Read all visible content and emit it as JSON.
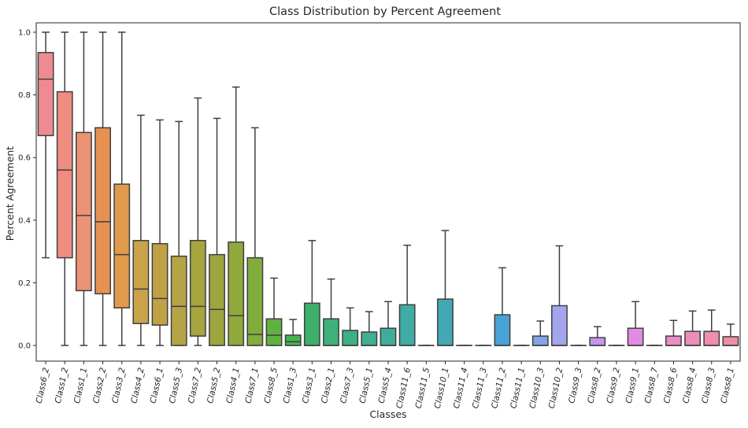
{
  "chart_data": {
    "type": "box",
    "title": "Class Distribution by Percent Agreement",
    "xlabel": "Classes",
    "ylabel": "Percent Agreement",
    "ylim": [
      -0.05,
      1.03
    ],
    "yticks": [
      "0.0",
      "0.2",
      "0.4",
      "0.6",
      "0.8",
      "1.0"
    ],
    "grid": false,
    "legend": "none",
    "boxes": [
      {
        "category": "Class6_2",
        "color": "#f08a92",
        "whisker_low": 0.28,
        "q1": 0.67,
        "median": 0.85,
        "q3": 0.935,
        "whisker_high": 1.0
      },
      {
        "category": "Class1_2",
        "color": "#ee8d80",
        "whisker_low": 0.0,
        "q1": 0.28,
        "median": 0.56,
        "q3": 0.81,
        "whisker_high": 1.0
      },
      {
        "category": "Class1_1",
        "color": "#ec9275",
        "whisker_low": 0.0,
        "q1": 0.175,
        "median": 0.415,
        "q3": 0.68,
        "whisker_high": 1.0
      },
      {
        "category": "Class2_2",
        "color": "#e69152",
        "whisker_low": 0.0,
        "q1": 0.165,
        "median": 0.395,
        "q3": 0.695,
        "whisker_high": 1.0
      },
      {
        "category": "Class3_2",
        "color": "#df9a4b",
        "whisker_low": 0.0,
        "q1": 0.12,
        "median": 0.29,
        "q3": 0.515,
        "whisker_high": 1.0
      },
      {
        "category": "Class4_2",
        "color": "#c9a24a",
        "whisker_low": 0.0,
        "q1": 0.07,
        "median": 0.18,
        "q3": 0.335,
        "whisker_high": 0.735
      },
      {
        "category": "Class6_1",
        "color": "#bfa146",
        "whisker_low": 0.0,
        "q1": 0.065,
        "median": 0.15,
        "q3": 0.325,
        "whisker_high": 0.72
      },
      {
        "category": "Class5_3",
        "color": "#b5a445",
        "whisker_low": 0.0,
        "q1": 0.0,
        "median": 0.125,
        "q3": 0.285,
        "whisker_high": 0.715
      },
      {
        "category": "Class7_2",
        "color": "#a8a43f",
        "whisker_low": 0.0,
        "q1": 0.03,
        "median": 0.125,
        "q3": 0.335,
        "whisker_high": 0.79
      },
      {
        "category": "Class5_2",
        "color": "#9da53e",
        "whisker_low": 0.0,
        "q1": 0.0,
        "median": 0.115,
        "q3": 0.29,
        "whisker_high": 0.725
      },
      {
        "category": "Class4_1",
        "color": "#8fa93c",
        "whisker_low": 0.0,
        "q1": 0.0,
        "median": 0.095,
        "q3": 0.33,
        "whisker_high": 0.825
      },
      {
        "category": "Class7_1",
        "color": "#80ad3c",
        "whisker_low": 0.0,
        "q1": 0.0,
        "median": 0.035,
        "q3": 0.28,
        "whisker_high": 0.695
      },
      {
        "category": "Class8_5",
        "color": "#5fb241",
        "whisker_low": 0.0,
        "q1": 0.0,
        "median": 0.033,
        "q3": 0.085,
        "whisker_high": 0.215
      },
      {
        "category": "Class1_3",
        "color": "#45b34e",
        "whisker_low": 0.0,
        "q1": 0.0,
        "median": 0.012,
        "q3": 0.033,
        "whisker_high": 0.083
      },
      {
        "category": "Class3_1",
        "color": "#3eb06a",
        "whisker_low": 0.0,
        "q1": 0.0,
        "median": 0.0,
        "q3": 0.135,
        "whisker_high": 0.335
      },
      {
        "category": "Class2_1",
        "color": "#3fb079",
        "whisker_low": 0.0,
        "q1": 0.0,
        "median": 0.0,
        "q3": 0.085,
        "whisker_high": 0.212
      },
      {
        "category": "Class7_3",
        "color": "#3eaf86",
        "whisker_low": 0.0,
        "q1": 0.0,
        "median": 0.0,
        "q3": 0.048,
        "whisker_high": 0.12
      },
      {
        "category": "Class5_1",
        "color": "#3fae91",
        "whisker_low": 0.0,
        "q1": 0.0,
        "median": 0.0,
        "q3": 0.043,
        "whisker_high": 0.108
      },
      {
        "category": "Class5_4",
        "color": "#3fad9a",
        "whisker_low": 0.0,
        "q1": 0.0,
        "median": 0.0,
        "q3": 0.055,
        "whisker_high": 0.14
      },
      {
        "category": "Class11_6",
        "color": "#40aca3",
        "whisker_low": 0.0,
        "q1": 0.0,
        "median": 0.0,
        "q3": 0.13,
        "whisker_high": 0.32
      },
      {
        "category": "Class11_5",
        "color": "#41aaac",
        "whisker_low": 0.0,
        "q1": 0.0,
        "median": 0.0,
        "q3": 0.0,
        "whisker_high": 0.0
      },
      {
        "category": "Class10_1",
        "color": "#42a9b4",
        "whisker_low": 0.0,
        "q1": 0.0,
        "median": 0.0,
        "q3": 0.148,
        "whisker_high": 0.367
      },
      {
        "category": "Class11_4",
        "color": "#43a7bc",
        "whisker_low": 0.0,
        "q1": 0.0,
        "median": 0.0,
        "q3": 0.0,
        "whisker_high": 0.0
      },
      {
        "category": "Class11_3",
        "color": "#45a5c6",
        "whisker_low": 0.0,
        "q1": 0.0,
        "median": 0.0,
        "q3": 0.0,
        "whisker_high": 0.0
      },
      {
        "category": "Class11_2",
        "color": "#48a4d6",
        "whisker_low": 0.0,
        "q1": 0.0,
        "median": 0.0,
        "q3": 0.098,
        "whisker_high": 0.248
      },
      {
        "category": "Class11_1",
        "color": "#62a0e0",
        "whisker_low": 0.0,
        "q1": 0.0,
        "median": 0.0,
        "q3": 0.0,
        "whisker_high": 0.0
      },
      {
        "category": "Class10_3",
        "color": "#86a2e6",
        "whisker_low": 0.0,
        "q1": 0.0,
        "median": 0.0,
        "q3": 0.03,
        "whisker_high": 0.078
      },
      {
        "category": "Class10_2",
        "color": "#a3a6ec",
        "whisker_low": 0.0,
        "q1": 0.0,
        "median": 0.0,
        "q3": 0.127,
        "whisker_high": 0.318
      },
      {
        "category": "Class9_3",
        "color": "#b39ded",
        "whisker_low": 0.0,
        "q1": 0.0,
        "median": 0.0,
        "q3": 0.0,
        "whisker_high": 0.0
      },
      {
        "category": "Class8_2",
        "color": "#c495ec",
        "whisker_low": 0.0,
        "q1": 0.0,
        "median": 0.0,
        "q3": 0.025,
        "whisker_high": 0.06
      },
      {
        "category": "Class9_2",
        "color": "#d38eea",
        "whisker_low": 0.0,
        "q1": 0.0,
        "median": 0.0,
        "q3": 0.0,
        "whisker_high": 0.0
      },
      {
        "category": "Class9_1",
        "color": "#e28be5",
        "whisker_low": 0.0,
        "q1": 0.0,
        "median": 0.0,
        "q3": 0.055,
        "whisker_high": 0.14
      },
      {
        "category": "Class8_7",
        "color": "#e98bd6",
        "whisker_low": 0.0,
        "q1": 0.0,
        "median": 0.0,
        "q3": 0.0,
        "whisker_high": 0.0
      },
      {
        "category": "Class8_6",
        "color": "#eb8cc6",
        "whisker_low": 0.0,
        "q1": 0.0,
        "median": 0.0,
        "q3": 0.03,
        "whisker_high": 0.08
      },
      {
        "category": "Class8_4",
        "color": "#ec8dba",
        "whisker_low": 0.0,
        "q1": 0.0,
        "median": 0.0,
        "q3": 0.045,
        "whisker_high": 0.11
      },
      {
        "category": "Class8_3",
        "color": "#ed8daf",
        "whisker_low": 0.0,
        "q1": 0.0,
        "median": 0.0,
        "q3": 0.045,
        "whisker_high": 0.113
      },
      {
        "category": "Class8_1",
        "color": "#ee8ea2",
        "whisker_low": 0.0,
        "q1": 0.0,
        "median": 0.0,
        "q3": 0.028,
        "whisker_high": 0.068
      }
    ]
  }
}
